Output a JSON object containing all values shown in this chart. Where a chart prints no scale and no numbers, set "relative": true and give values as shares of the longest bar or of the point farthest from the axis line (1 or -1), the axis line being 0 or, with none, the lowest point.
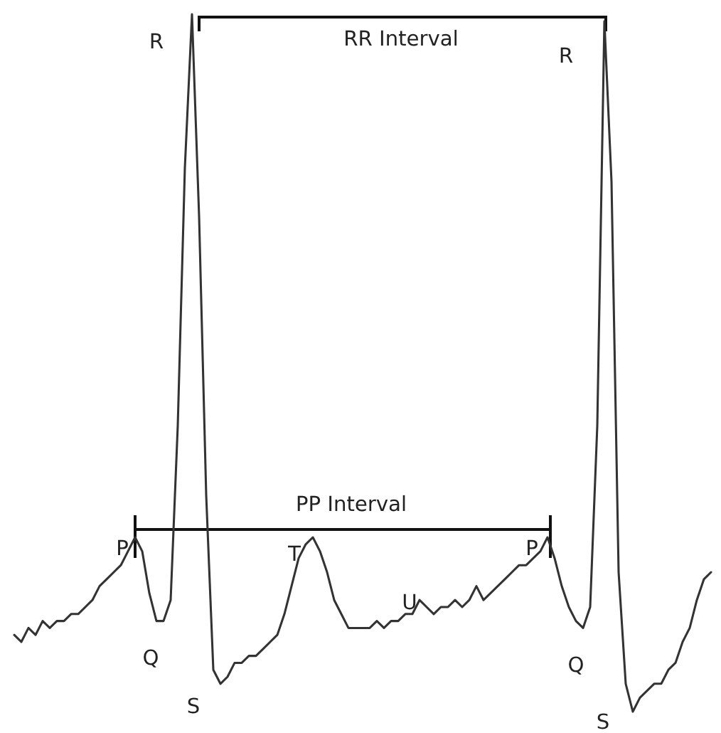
{
  "chart_data": {
    "type": "line",
    "relative": true,
    "categories": [
      null,
      null,
      null,
      null,
      null,
      null,
      null,
      null,
      null,
      null,
      null,
      null,
      null,
      null,
      null,
      null,
      null,
      null,
      null,
      null,
      null,
      null,
      null,
      null,
      null,
      null,
      null,
      null,
      null,
      null,
      null,
      null,
      null,
      null,
      null,
      null,
      null,
      null,
      null,
      null,
      null,
      null,
      null,
      null,
      null,
      null,
      null,
      null,
      null,
      null,
      null,
      null,
      null,
      null,
      null,
      null,
      null,
      null,
      null,
      null,
      null,
      null,
      null,
      null,
      null,
      null,
      null,
      null,
      null,
      null,
      null,
      null,
      null,
      null,
      null,
      null,
      null,
      null,
      null,
      null,
      null,
      null,
      null,
      null,
      null,
      null,
      null,
      null,
      null,
      null,
      null,
      null,
      null,
      null,
      null,
      null,
      null,
      null,
      null
    ],
    "series": [
      {
        "color": "#333333",
        "values": [
          0.11,
          0.1,
          0.12,
          0.11,
          0.13,
          0.12,
          0.13,
          0.13,
          0.14,
          0.14,
          0.15,
          0.16,
          0.18,
          0.19,
          0.2,
          0.21,
          0.23,
          0.25,
          0.23,
          0.17,
          0.13,
          0.13,
          0.16,
          0.41,
          0.78,
          1.0,
          0.71,
          0.31,
          0.06,
          0.04,
          0.05,
          0.07,
          0.07,
          0.08,
          0.08,
          0.09,
          0.1,
          0.11,
          0.14,
          0.18,
          0.22,
          0.24,
          0.25,
          0.23,
          0.2,
          0.16,
          0.14,
          0.12,
          0.12,
          0.12,
          0.12,
          0.13,
          0.12,
          0.13,
          0.13,
          0.14,
          0.14,
          0.16,
          0.15,
          0.14,
          0.15,
          0.15,
          0.16,
          0.15,
          0.16,
          0.18,
          0.16,
          0.17,
          0.18,
          0.19,
          0.2,
          0.21,
          0.21,
          0.22,
          0.23,
          0.25,
          0.22,
          0.18,
          0.15,
          0.13,
          0.12,
          0.15,
          0.41,
          0.99,
          0.76,
          0.2,
          0.04,
          0.0,
          0.02,
          0.03,
          0.04,
          0.04,
          0.06,
          0.07,
          0.1,
          0.12,
          0.16,
          0.19,
          0.2
        ]
      }
    ],
    "annotations": [
      "R",
      "R",
      "RR Interval",
      "P",
      "P",
      "PP Interval",
      "Q",
      "Q",
      "S",
      "S",
      "T",
      "U"
    ]
  }
}
